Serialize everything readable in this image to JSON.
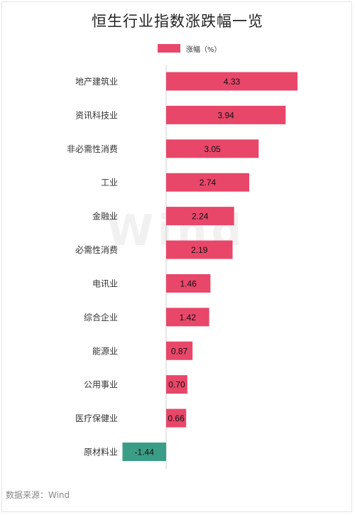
{
  "title": "恒生行业指数涨跌幅一览",
  "legend": {
    "label": "涨幅（%）"
  },
  "source": "数据来源：Wind",
  "watermark": "Wind",
  "colors": {
    "positive": "#e8476a",
    "negative": "#3a9e86",
    "axis": "#cfcfcf",
    "label": "#333333"
  },
  "chart_data": {
    "type": "bar",
    "orientation": "horizontal",
    "title": "恒生行业指数涨跌幅一览",
    "categories": [
      "地产建筑业",
      "资讯科技业",
      "非必需性消费",
      "工业",
      "金融业",
      "必需性消费",
      "电讯业",
      "综合企业",
      "能源业",
      "公用事业",
      "医疗保健业",
      "原材料业"
    ],
    "series": [
      {
        "name": "涨幅（%）",
        "values": [
          4.33,
          3.94,
          3.05,
          2.74,
          2.24,
          2.19,
          1.46,
          1.42,
          0.87,
          0.7,
          0.66,
          -1.44
        ]
      }
    ],
    "value_labels": [
      "4.33",
      "3.94",
      "3.05",
      "2.74",
      "2.24",
      "2.19",
      "1.46",
      "1.42",
      "0.87",
      "0.70",
      "0.66",
      "-1.44"
    ],
    "xlim": [
      -1.44,
      4.33
    ],
    "grid": false,
    "legend_position": "top"
  }
}
